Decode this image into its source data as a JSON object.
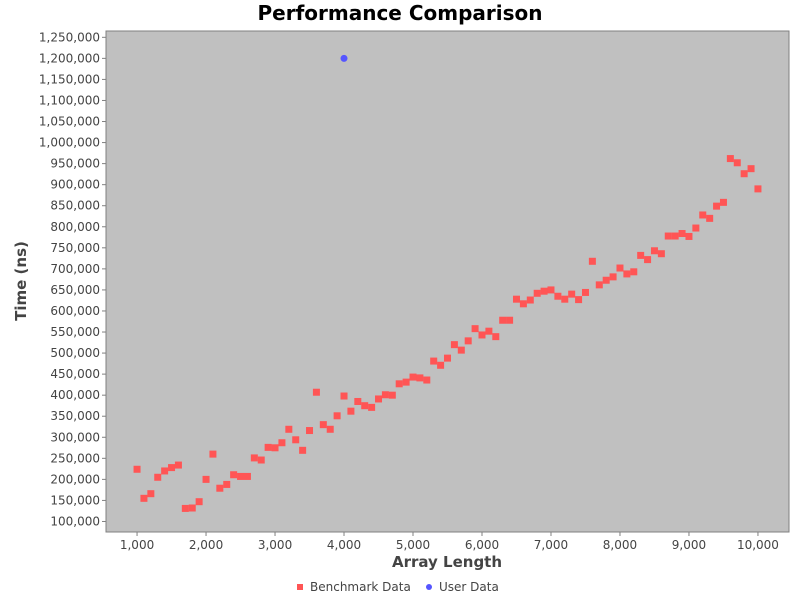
{
  "chart_data": {
    "type": "scatter",
    "title": "Performance Comparison",
    "xlabel": "Array Length",
    "ylabel": "Time (ns)",
    "xlim": [
      550,
      10450
    ],
    "ylim": [
      75000,
      1265000
    ],
    "x_ticks": [
      1000,
      2000,
      3000,
      4000,
      5000,
      6000,
      7000,
      8000,
      9000,
      10000
    ],
    "x_tick_labels": [
      "1,000",
      "2,000",
      "3,000",
      "4,000",
      "5,000",
      "6,000",
      "7,000",
      "8,000",
      "9,000",
      "10,000"
    ],
    "y_ticks": [
      100000,
      150000,
      200000,
      250000,
      300000,
      350000,
      400000,
      450000,
      500000,
      550000,
      600000,
      650000,
      700000,
      750000,
      800000,
      850000,
      900000,
      950000,
      1000000,
      1050000,
      1100000,
      1150000,
      1200000,
      1250000
    ],
    "y_tick_labels": [
      "100,000",
      "150,000",
      "200,000",
      "250,000",
      "300,000",
      "350,000",
      "400,000",
      "450,000",
      "500,000",
      "550,000",
      "600,000",
      "650,000",
      "700,000",
      "750,000",
      "800,000",
      "850,000",
      "900,000",
      "950,000",
      "1,000,000",
      "1,050,000",
      "1,100,000",
      "1,150,000",
      "1,200,000",
      "1,250,000"
    ],
    "grid": false,
    "legend_position": "bottom",
    "plot_background": "#c0c0c0",
    "series": [
      {
        "name": "Benchmark Data",
        "color": "#ff5555",
        "marker": "square",
        "points": [
          [
            1000,
            224000
          ],
          [
            1100,
            155000
          ],
          [
            1200,
            166000
          ],
          [
            1300,
            205000
          ],
          [
            1400,
            220000
          ],
          [
            1500,
            228000
          ],
          [
            1600,
            234000
          ],
          [
            1700,
            131000
          ],
          [
            1800,
            132000
          ],
          [
            1900,
            147000
          ],
          [
            2000,
            200000
          ],
          [
            2100,
            260000
          ],
          [
            2200,
            179000
          ],
          [
            2300,
            188000
          ],
          [
            2400,
            211000
          ],
          [
            2500,
            207000
          ],
          [
            2600,
            207000
          ],
          [
            2700,
            251000
          ],
          [
            2800,
            246000
          ],
          [
            2900,
            276000
          ],
          [
            3000,
            275000
          ],
          [
            3100,
            287000
          ],
          [
            3200,
            319000
          ],
          [
            3300,
            294000
          ],
          [
            3400,
            269000
          ],
          [
            3500,
            316000
          ],
          [
            3600,
            407000
          ],
          [
            3700,
            330000
          ],
          [
            3800,
            319000
          ],
          [
            3900,
            351000
          ],
          [
            4000,
            398000
          ],
          [
            4100,
            362000
          ],
          [
            4200,
            385000
          ],
          [
            4300,
            375000
          ],
          [
            4400,
            371000
          ],
          [
            4500,
            391000
          ],
          [
            4600,
            401000
          ],
          [
            4700,
            400000
          ],
          [
            4800,
            427000
          ],
          [
            4900,
            431000
          ],
          [
            5000,
            443000
          ],
          [
            5100,
            441000
          ],
          [
            5200,
            436000
          ],
          [
            5300,
            481000
          ],
          [
            5400,
            471000
          ],
          [
            5500,
            488000
          ],
          [
            5600,
            520000
          ],
          [
            5700,
            507000
          ],
          [
            5800,
            529000
          ],
          [
            5900,
            558000
          ],
          [
            6000,
            543000
          ],
          [
            6100,
            552000
          ],
          [
            6200,
            539000
          ],
          [
            6300,
            578000
          ],
          [
            6400,
            578000
          ],
          [
            6500,
            628000
          ],
          [
            6600,
            617000
          ],
          [
            6700,
            626000
          ],
          [
            6800,
            642000
          ],
          [
            6900,
            647000
          ],
          [
            7000,
            650000
          ],
          [
            7100,
            635000
          ],
          [
            7200,
            628000
          ],
          [
            7300,
            640000
          ],
          [
            7400,
            627000
          ],
          [
            7500,
            644000
          ],
          [
            7600,
            718000
          ],
          [
            7700,
            662000
          ],
          [
            7800,
            673000
          ],
          [
            7900,
            681000
          ],
          [
            8000,
            702000
          ],
          [
            8100,
            688000
          ],
          [
            8200,
            693000
          ],
          [
            8300,
            732000
          ],
          [
            8400,
            722000
          ],
          [
            8500,
            743000
          ],
          [
            8600,
            736000
          ],
          [
            8700,
            778000
          ],
          [
            8800,
            778000
          ],
          [
            8900,
            784000
          ],
          [
            9000,
            777000
          ],
          [
            9100,
            797000
          ],
          [
            9200,
            828000
          ],
          [
            9300,
            820000
          ],
          [
            9400,
            849000
          ],
          [
            9500,
            858000
          ],
          [
            9600,
            962000
          ],
          [
            9700,
            952000
          ],
          [
            9800,
            926000
          ],
          [
            9900,
            938000
          ],
          [
            10000,
            890000
          ]
        ]
      },
      {
        "name": "User Data",
        "color": "#5555ff",
        "marker": "circle",
        "points": [
          [
            4000,
            1200000
          ]
        ]
      }
    ]
  }
}
